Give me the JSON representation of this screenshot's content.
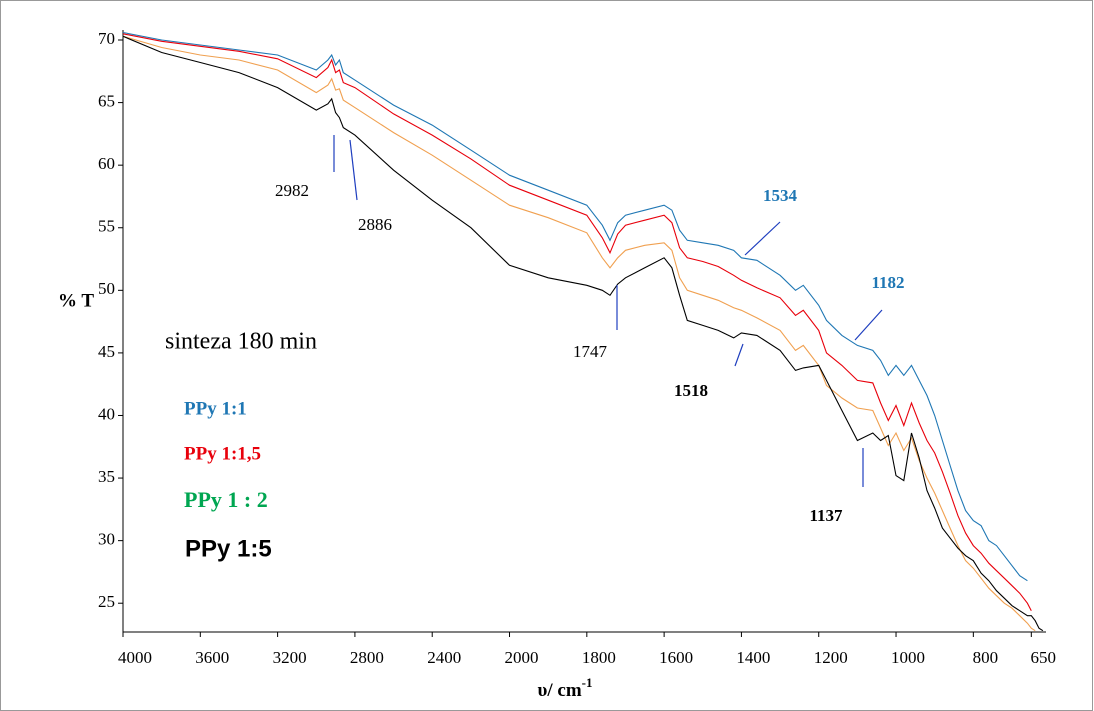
{
  "chart_data": {
    "type": "line",
    "ylabel": "% T",
    "xlabel": "υ/ cm",
    "xlabel_sup": "-1",
    "subtitle": "sinteza 180 min",
    "xlim": [
      4000,
      612
    ],
    "x_scale_break": 2000,
    "ylim": [
      22.7,
      70.8
    ],
    "xticks": [
      4000,
      3600,
      3200,
      2800,
      2400,
      2000,
      1800,
      1600,
      1400,
      1200,
      1000,
      800,
      650
    ],
    "yticks": [
      25,
      30,
      35,
      40,
      45,
      50,
      55,
      60,
      65,
      70
    ],
    "x": [
      4000,
      3800,
      3600,
      3400,
      3200,
      3000,
      2940,
      2920,
      2900,
      2880,
      2860,
      2800,
      2600,
      2400,
      2200,
      2000,
      1900,
      1800,
      1760,
      1740,
      1720,
      1700,
      1650,
      1600,
      1580,
      1560,
      1540,
      1500,
      1460,
      1420,
      1400,
      1360,
      1300,
      1260,
      1240,
      1200,
      1180,
      1140,
      1100,
      1060,
      1040,
      1020,
      1000,
      980,
      960,
      940,
      920,
      900,
      880,
      860,
      840,
      820,
      800,
      780,
      760,
      740,
      720,
      700,
      680,
      660,
      650,
      640,
      630,
      620
    ],
    "series": [
      {
        "name": "PPy 1:1",
        "color": "#1f77b4",
        "legend_color": "#1f77b4",
        "values": [
          70.6,
          70,
          69.6,
          69.2,
          68.8,
          67.6,
          68.4,
          68.8,
          68.0,
          68.4,
          67.4,
          66.8,
          64.8,
          63.2,
          61.2,
          59.2,
          58,
          56.8,
          55.2,
          54,
          55.4,
          56,
          56.4,
          56.8,
          56.4,
          54.8,
          54,
          53.8,
          53.6,
          53.2,
          52.6,
          52.4,
          51.2,
          50,
          50.4,
          48.8,
          47.6,
          46.4,
          45.6,
          45.2,
          44.4,
          43.2,
          44,
          43.2,
          44,
          42.8,
          41.6,
          40,
          38,
          36,
          34,
          32.4,
          31.6,
          31.2,
          30,
          29.6,
          28.8,
          28,
          27.2,
          26.8,
          null,
          null,
          null,
          null
        ]
      },
      {
        "name": "PPy 1:1,5",
        "color": "#e8000b",
        "legend_color": "#e8000b",
        "values": [
          70.5,
          69.9,
          69.5,
          69.1,
          68.5,
          67.0,
          67.8,
          68.4,
          67.4,
          67.6,
          66.6,
          66.2,
          64.1,
          62.4,
          60.5,
          58.4,
          57.2,
          56.0,
          54.2,
          53.0,
          54.5,
          55.2,
          55.6,
          56.0,
          55.4,
          53.4,
          52.6,
          52.3,
          51.9,
          51.2,
          50.8,
          50.2,
          49.4,
          48.0,
          48.4,
          46.8,
          45.0,
          44.0,
          42.8,
          42.6,
          41.0,
          39.6,
          40.8,
          39.2,
          41.0,
          39.4,
          38.0,
          37.0,
          35.5,
          33.8,
          32.0,
          30.6,
          29.6,
          29.0,
          28.2,
          27.6,
          27.0,
          26.4,
          25.8,
          25.0,
          24.4,
          null,
          null,
          null
        ]
      },
      {
        "name": "PPy 1 : 2",
        "color": "#f0a050",
        "legend_color": "#00a651",
        "values": [
          70.3,
          69.4,
          68.8,
          68.4,
          67.6,
          65.8,
          66.4,
          66.9,
          66.0,
          66.1,
          65.2,
          64.6,
          62.6,
          60.8,
          58.8,
          56.8,
          55.8,
          54.6,
          52.6,
          51.8,
          52.6,
          53.2,
          53.6,
          53.8,
          53.2,
          51.0,
          50.0,
          49.6,
          49.2,
          48.6,
          48.4,
          47.8,
          46.8,
          45.2,
          45.6,
          44.0,
          42.4,
          41.4,
          40.6,
          40.4,
          39.0,
          37.6,
          38.6,
          37.2,
          38.2,
          36.4,
          35.0,
          33.8,
          32.4,
          31.0,
          29.6,
          28.4,
          27.8,
          27.0,
          26.2,
          25.6,
          25.0,
          24.6,
          24.0,
          23.4,
          23.0,
          22.8,
          null,
          null
        ]
      },
      {
        "name": "PPy 1:5",
        "color": "#000000",
        "legend_color": "#000000",
        "values": [
          70.3,
          69,
          68.2,
          67.4,
          66.2,
          64.4,
          64.9,
          65.3,
          64.2,
          63.8,
          63.0,
          62.4,
          59.6,
          57.2,
          55.0,
          52.0,
          51.0,
          50.4,
          50.0,
          49.6,
          50.5,
          51.0,
          51.8,
          52.6,
          51.8,
          49.6,
          47.6,
          47.2,
          46.8,
          46.2,
          46.6,
          46.4,
          45.2,
          43.6,
          43.8,
          44.0,
          42.8,
          40.4,
          38.0,
          38.6,
          38.0,
          38.4,
          35.2,
          34.8,
          38.6,
          36.6,
          34.0,
          32.6,
          31.0,
          30.2,
          29.4,
          28.8,
          28.4,
          27.4,
          26.8,
          26.0,
          25.4,
          24.8,
          24.4,
          24.0,
          24.0,
          23.6,
          23.0,
          22.8
        ]
      }
    ],
    "annotations": [
      "2982",
      "2886",
      "1747",
      "1534",
      "1518",
      "1182",
      "1137"
    ]
  }
}
